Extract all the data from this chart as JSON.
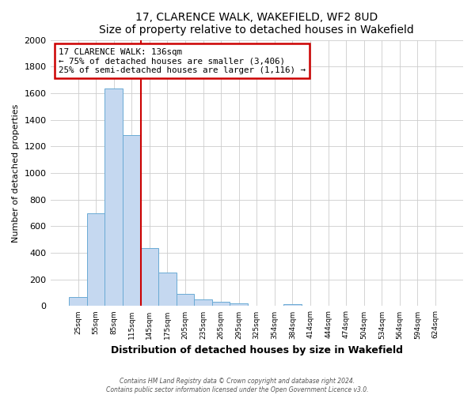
{
  "title": "17, CLARENCE WALK, WAKEFIELD, WF2 8UD",
  "subtitle": "Size of property relative to detached houses in Wakefield",
  "xlabel": "Distribution of detached houses by size in Wakefield",
  "ylabel": "Number of detached properties",
  "bar_labels": [
    "25sqm",
    "55sqm",
    "85sqm",
    "115sqm",
    "145sqm",
    "175sqm",
    "205sqm",
    "235sqm",
    "265sqm",
    "295sqm",
    "325sqm",
    "354sqm",
    "384sqm",
    "414sqm",
    "444sqm",
    "474sqm",
    "504sqm",
    "534sqm",
    "564sqm",
    "594sqm",
    "624sqm"
  ],
  "bar_values": [
    65,
    695,
    1635,
    1285,
    435,
    250,
    90,
    50,
    30,
    20,
    0,
    0,
    15,
    0,
    0,
    0,
    0,
    0,
    0,
    0,
    0
  ],
  "bar_color": "#c5d8f0",
  "bar_edge_color": "#6aaad4",
  "vline_x": 3.5,
  "vline_color": "#cc0000",
  "annotation_title": "17 CLARENCE WALK: 136sqm",
  "annotation_line1": "← 75% of detached houses are smaller (3,406)",
  "annotation_line2": "25% of semi-detached houses are larger (1,116) →",
  "annotation_box_color": "#ffffff",
  "annotation_box_edge": "#cc0000",
  "ylim": [
    0,
    2000
  ],
  "yticks": [
    0,
    200,
    400,
    600,
    800,
    1000,
    1200,
    1400,
    1600,
    1800,
    2000
  ],
  "footer_line1": "Contains HM Land Registry data © Crown copyright and database right 2024.",
  "footer_line2": "Contains public sector information licensed under the Open Government Licence v3.0.",
  "background_color": "#ffffff",
  "grid_color": "#cccccc"
}
